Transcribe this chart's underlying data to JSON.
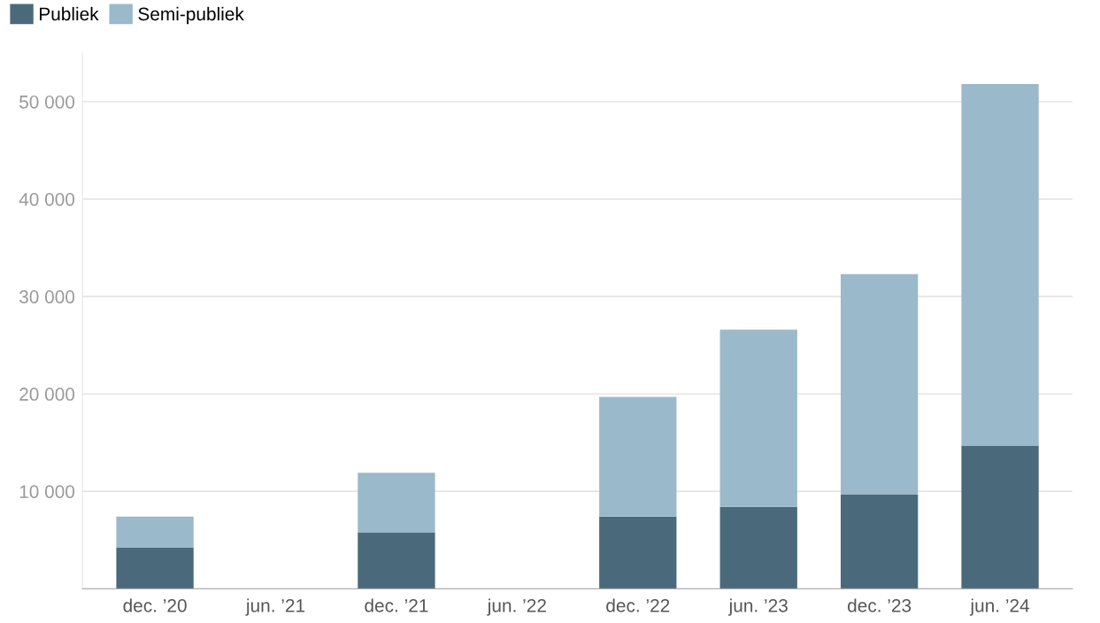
{
  "chart_data": {
    "type": "bar",
    "stacked": true,
    "categories": [
      "dec. ’20",
      "jun. ’21",
      "dec. ’21",
      "jun. ’22",
      "dec. ’22",
      "jun. ’23",
      "dec. ’23",
      "jun. ’24"
    ],
    "series": [
      {
        "name": "Publiek",
        "color": "#4a6a7b",
        "values": [
          4200,
          null,
          5800,
          null,
          7400,
          8400,
          9700,
          14700
        ]
      },
      {
        "name": "Semi-publiek",
        "color": "#9ab9ca",
        "values": [
          3200,
          null,
          6100,
          null,
          12300,
          18200,
          22600,
          37100
        ]
      }
    ],
    "ylim": [
      0,
      55000
    ],
    "yticks": [
      {
        "value": 10000,
        "label": "10 000"
      },
      {
        "value": 20000,
        "label": "20 000"
      },
      {
        "value": 30000,
        "label": "30 000"
      },
      {
        "value": 40000,
        "label": "40 000"
      },
      {
        "value": 50000,
        "label": "50 000"
      }
    ],
    "grid": "y",
    "legend": "top left"
  }
}
